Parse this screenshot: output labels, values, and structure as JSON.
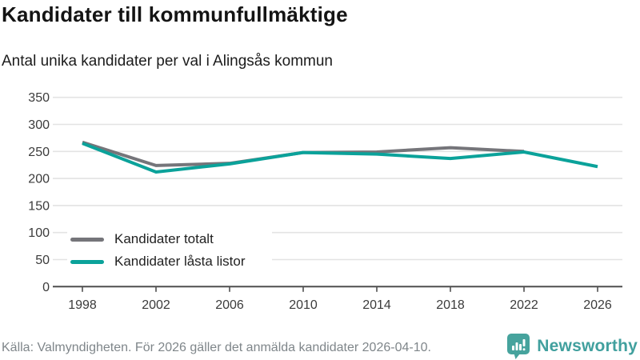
{
  "header": {
    "title": "Kandidater till kommunfullmäktige",
    "subtitle": "Antal unika kandidater per val i Alingsås kommun"
  },
  "chart_data": {
    "type": "line",
    "title": "Kandidater till kommunfullmäktige",
    "subtitle": "Antal unika kandidater per val i Alingsås kommun",
    "xlabel": "",
    "ylabel": "",
    "ylim": [
      0,
      350
    ],
    "yticks": [
      0,
      50,
      100,
      150,
      200,
      250,
      300,
      350
    ],
    "xticks": [
      1998,
      2002,
      2006,
      2010,
      2014,
      2018,
      2022,
      2026
    ],
    "grid": true,
    "legend_position": "inside-bottom-left",
    "series": [
      {
        "name": "Kandidater totalt",
        "color": "#75757a",
        "x": [
          1998,
          2002,
          2006,
          2010,
          2014,
          2018,
          2022
        ],
        "values": [
          267,
          224,
          228,
          248,
          249,
          257,
          250
        ]
      },
      {
        "name": "Kandidater låsta listor",
        "color": "#0ba29a",
        "x": [
          1998,
          2002,
          2006,
          2010,
          2014,
          2018,
          2022,
          2026
        ],
        "values": [
          265,
          212,
          227,
          248,
          245,
          237,
          249,
          222
        ]
      }
    ]
  },
  "legend": {
    "items": [
      {
        "label": "Kandidater totalt",
        "color": "#75757a"
      },
      {
        "label": "Kandidater låsta listor",
        "color": "#0ba29a"
      }
    ]
  },
  "footer": {
    "source": "Källa: Valmyndigheten. För 2026 gäller det anmälda kandidater 2026-04-10.",
    "brand": "Newsworthy"
  },
  "colors": {
    "teal": "#0ba29a",
    "gray": "#75757a",
    "gridline": "#e3e3e3",
    "axis": "#4f4f4f",
    "tick_label": "#3b3b3b",
    "title_text": "#141414",
    "muted_text": "#7f868a",
    "logo_teal": "#46a39d"
  }
}
